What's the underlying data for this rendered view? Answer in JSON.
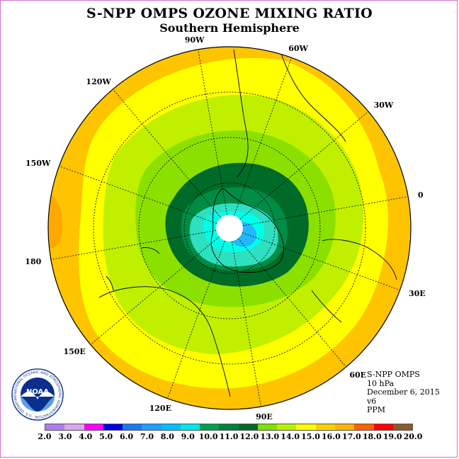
{
  "title": "S-NPP OMPS OZONE MIXING RATIO",
  "subtitle": "Southern Hemisphere",
  "longitudes": [
    {
      "label": "90W",
      "angle": -10
    },
    {
      "label": "60W",
      "angle": 20
    },
    {
      "label": "30W",
      "angle": 50
    },
    {
      "label": "0",
      "angle": 80
    },
    {
      "label": "30E",
      "angle": 110
    },
    {
      "label": "60E",
      "angle": 140
    },
    {
      "label": "90E",
      "angle": 170
    },
    {
      "label": "120E",
      "angle": 200
    },
    {
      "label": "150E",
      "angle": 230
    },
    {
      "label": "180",
      "angle": 260
    },
    {
      "label": "150W",
      "angle": 290
    },
    {
      "label": "120W",
      "angle": 320
    }
  ],
  "info": {
    "instrument": "S-NPP OMPS",
    "level": "10 hPa",
    "date": "December 6, 2015",
    "version": "v6",
    "units": "PPM"
  },
  "colorbar": {
    "labels": [
      "2.0",
      "3.0",
      "4.0",
      "5.0",
      "6.0",
      "7.0",
      "8.0",
      "9.0",
      "10.0",
      "11.0",
      "12.0",
      "13.0",
      "14.0",
      "15.0",
      "16.0",
      "17.0",
      "18.0",
      "19.0",
      "20.0"
    ],
    "colors": [
      "#b27cf0",
      "#d8a8f0",
      "#ff00ff",
      "#0000e0",
      "#1e78f0",
      "#1ea0ff",
      "#00c0ff",
      "#00e8e8",
      "#00a050",
      "#008040",
      "#006a28",
      "#80e000",
      "#b8f000",
      "#ffff00",
      "#ffd000",
      "#ffb400",
      "#ff6000",
      "#ff0000",
      "#8b5a2b"
    ]
  },
  "logo": {
    "text": "NOAA",
    "ring_text": "NATIONAL OCEANIC AND ATMOSPHERIC ADMINISTRATION · U.S. DEPARTMENT OF COMMERCE"
  }
}
